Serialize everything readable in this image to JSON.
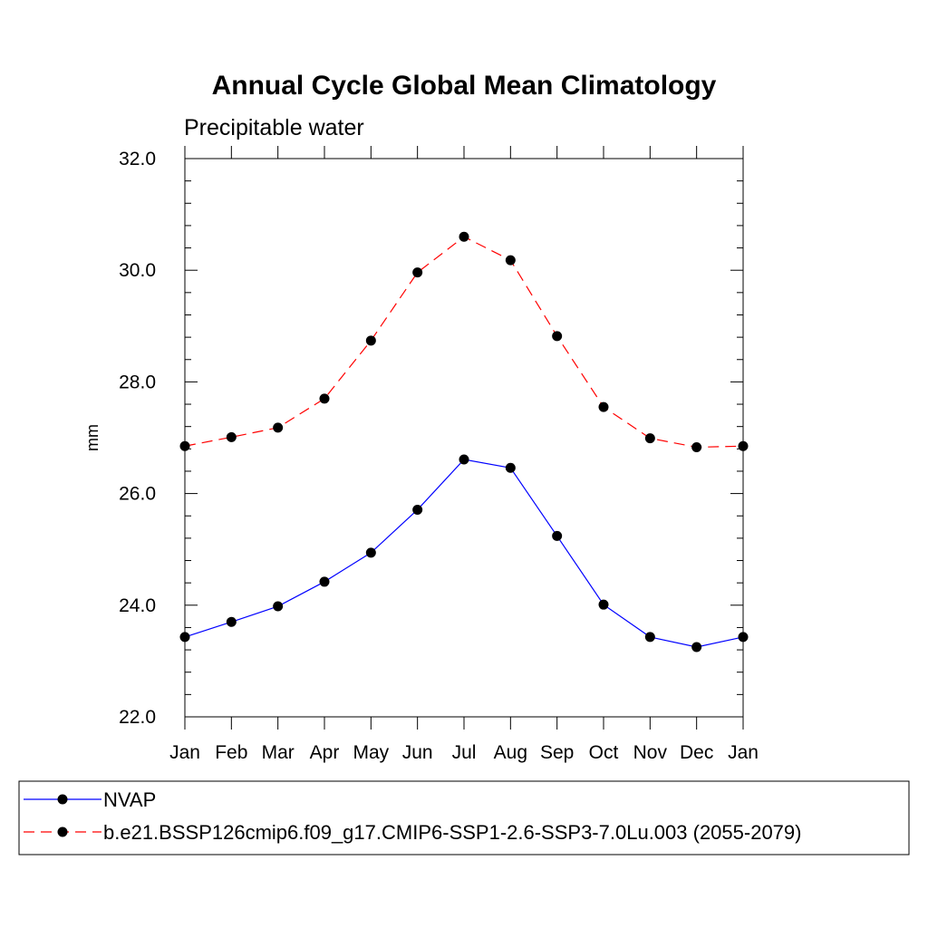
{
  "chart_data": {
    "type": "line",
    "title": "Annual Cycle Global Mean Climatology",
    "subtitle": "Precipitable water",
    "xlabel": "",
    "ylabel": "mm",
    "categories": [
      "Jan",
      "Feb",
      "Mar",
      "Apr",
      "May",
      "Jun",
      "Jul",
      "Aug",
      "Sep",
      "Oct",
      "Nov",
      "Dec",
      "Jan"
    ],
    "ylim": [
      22.0,
      32.0
    ],
    "yticks": [
      22.0,
      24.0,
      26.0,
      28.0,
      30.0,
      32.0
    ],
    "ytick_labels": [
      "22.0",
      "24.0",
      "26.0",
      "28.0",
      "30.0",
      "32.0"
    ],
    "grid": false,
    "legend_position": "bottom",
    "series": [
      {
        "name": "NVAP",
        "color": "#0000ff",
        "dash": "solid",
        "marker_color": "#000000",
        "values": [
          23.43,
          23.7,
          23.98,
          24.42,
          24.94,
          25.71,
          26.61,
          26.46,
          25.24,
          24.01,
          23.43,
          23.25,
          23.43
        ]
      },
      {
        "name": "b.e21.BSSP126cmip6.f09_g17.CMIP6-SSP1-2.6-SSP3-7.0Lu.003 (2055-2079)",
        "color": "#ff0000",
        "dash": "dashed",
        "marker_color": "#000000",
        "values": [
          26.85,
          27.01,
          27.18,
          27.7,
          28.74,
          29.96,
          30.6,
          30.18,
          28.82,
          27.55,
          26.99,
          26.83,
          26.85
        ]
      }
    ]
  }
}
